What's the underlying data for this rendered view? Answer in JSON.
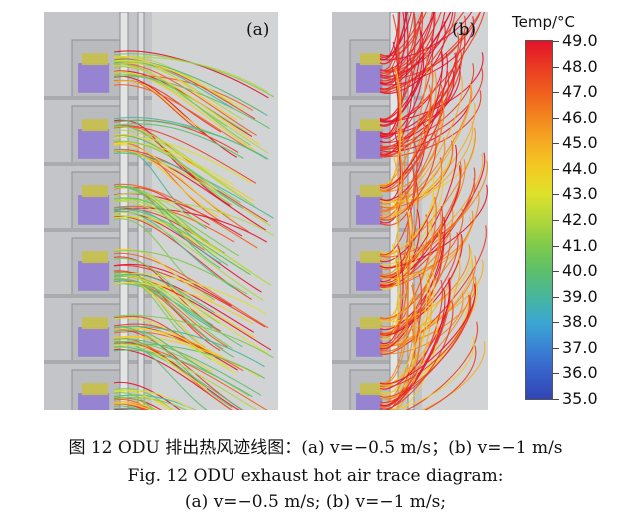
{
  "panels": [
    {
      "label": "(a)"
    },
    {
      "label": "(b)"
    }
  ],
  "colorbar": {
    "title": "Temp/°C",
    "ticks": [
      "49.0",
      "48.0",
      "47.0",
      "46.0",
      "45.0",
      "44.0",
      "43.0",
      "42.0",
      "41.0",
      "40.0",
      "39.0",
      "38.0",
      "37.0",
      "36.0",
      "35.0"
    ],
    "colors": [
      "#e3122b",
      "#ea3a22",
      "#ef5f1e",
      "#f3861e",
      "#f5ac22",
      "#f2cc22",
      "#dde12a",
      "#b2d73a",
      "#7fcb4a",
      "#5dbf6c",
      "#48b79c",
      "#3ba6d2",
      "#3a82d4",
      "#3860c9",
      "#3145b5"
    ]
  },
  "caption": {
    "cn": "图 12 ODU 排出热风迹线图：(a) v=−0.5 m/s；(b) v=−1 m/s",
    "en1": "Fig. 12 ODU exhaust hot air trace diagram:",
    "en2": "(a) v=−0.5 m/s; (b) v=−1 m/s;"
  }
}
